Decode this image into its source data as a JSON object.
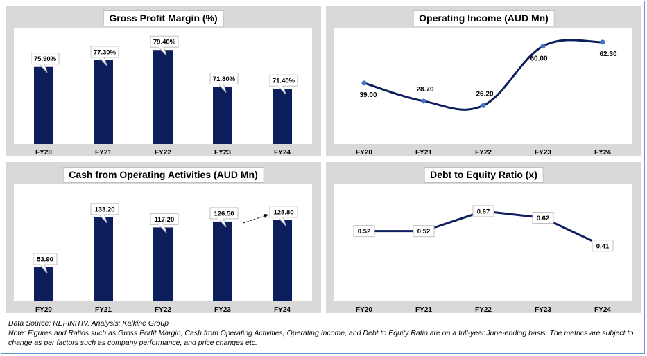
{
  "colors": {
    "bar": "#0c1f5c",
    "line": "#0c1f5c",
    "marker": "#4472c4",
    "panel_bg": "#d9d9d9",
    "border": "#5b9bd5"
  },
  "chart_data": [
    {
      "type": "bar",
      "title": "Gross Profit Margin (%)",
      "categories": [
        "FY20",
        "FY21",
        "FY22",
        "FY23",
        "FY24"
      ],
      "values": [
        75.9,
        77.3,
        79.4,
        71.8,
        71.4
      ],
      "labels": [
        "75.90%",
        "77.30%",
        "79.40%",
        "71.80%",
        "71.40%"
      ],
      "ylim": [
        60,
        80
      ],
      "grid": false,
      "legend": "none"
    },
    {
      "type": "line",
      "title": "Operating Income (AUD Mn)",
      "categories": [
        "FY20",
        "FY21",
        "FY22",
        "FY23",
        "FY24"
      ],
      "values": [
        39.0,
        28.7,
        26.2,
        60.0,
        62.3
      ],
      "labels": [
        "39.00",
        "28.70",
        "26.20",
        "60.00",
        "62.30"
      ],
      "ylim": [
        20,
        65
      ],
      "smooth": true,
      "grid": false,
      "legend": "none"
    },
    {
      "type": "bar",
      "title": "Cash from Operating Activities (AUD Mn)",
      "categories": [
        "FY20",
        "FY21",
        "FY22",
        "FY23",
        "FY24"
      ],
      "values": [
        53.9,
        133.2,
        117.2,
        126.5,
        128.8
      ],
      "labels": [
        "53.90",
        "133.20",
        "117.20",
        "126.50",
        "128.80"
      ],
      "ylim": [
        0,
        155
      ],
      "grid": false,
      "legend": "none",
      "annotation": "dashed arrow from FY23 to FY24"
    },
    {
      "type": "line",
      "title": "Debt to Equity Ratio (x)",
      "categories": [
        "FY20",
        "FY21",
        "FY22",
        "FY23",
        "FY24"
      ],
      "values": [
        0.52,
        0.52,
        0.67,
        0.62,
        0.41
      ],
      "labels": [
        "0.52",
        "0.52",
        "0.67",
        "0.62",
        "0.41"
      ],
      "ylim": [
        0.2,
        0.8
      ],
      "smooth": false,
      "grid": false,
      "legend": "none"
    }
  ],
  "notes": {
    "source": "Data Source: REFINITIV, Analysis: Kalkine Group",
    "note": "Note: Figures and Ratios such as Gross Porfit Margin, Cash from Operating Activities, Operating Income, and Debt to Equity Ratio are on a full-year June-ending basis. The metrics are subject to change as per factors such as company performance, and price changes etc."
  }
}
